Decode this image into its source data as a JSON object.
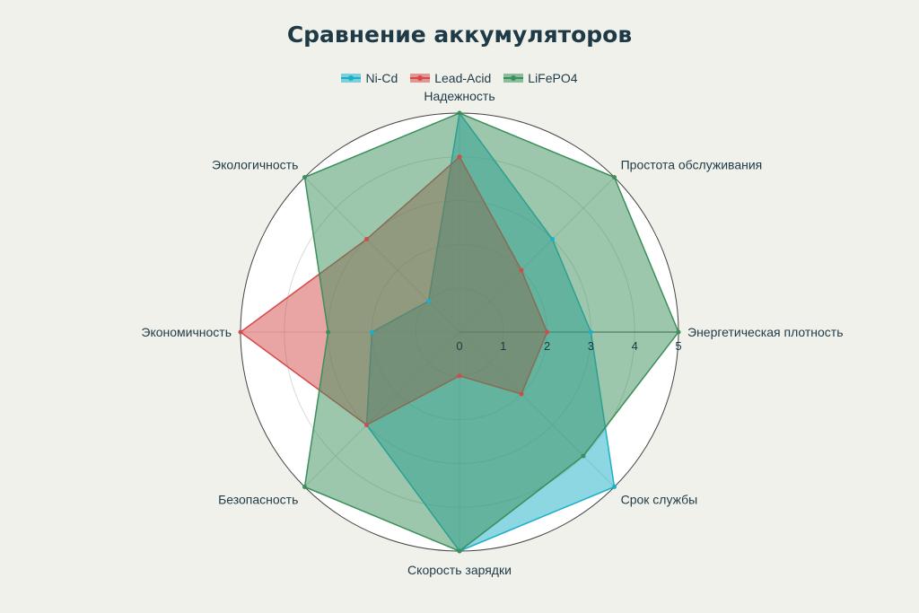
{
  "chart_data": {
    "type": "radar",
    "title": "Сравнение аккумуляторов",
    "axes": [
      "Энергетическая плотность",
      "Простота обслуживания",
      "Надежность",
      "Экологичность",
      "Экономичность",
      "Безопасность",
      "Скорость зарядки",
      "Срок службы"
    ],
    "range": [
      0,
      5
    ],
    "ticks": [
      "0",
      "1",
      "2",
      "3",
      "4",
      "5"
    ],
    "series": [
      {
        "name": "Ni-Cd",
        "color": "#1cb0c8",
        "values": [
          3,
          3,
          5,
          1,
          2,
          3,
          5,
          5
        ]
      },
      {
        "name": "Lead-Acid",
        "color": "#d44a4a",
        "values": [
          2,
          2,
          4,
          3,
          5,
          3,
          1,
          2
        ]
      },
      {
        "name": "LiFePO4",
        "color": "#3a8f5a",
        "values": [
          5,
          5,
          5,
          5,
          3,
          5,
          5,
          4
        ]
      }
    ],
    "grid": true,
    "legend_position": "top-center"
  }
}
